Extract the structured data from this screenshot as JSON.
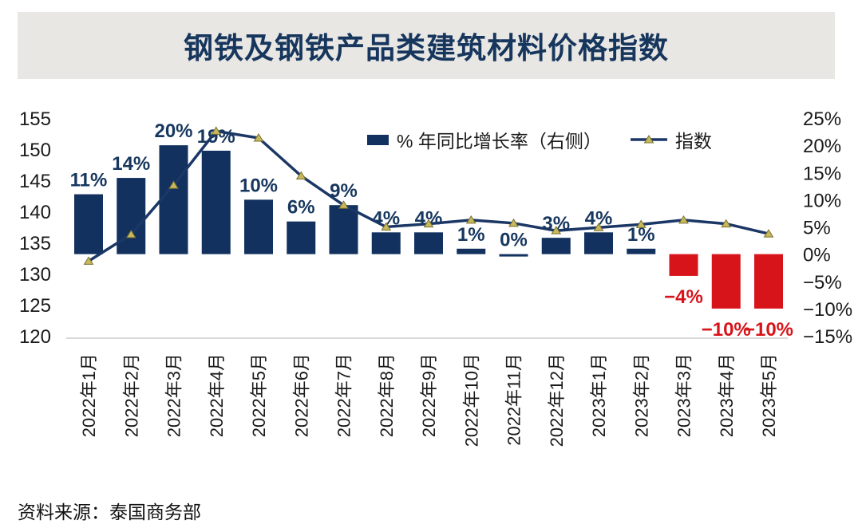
{
  "main": {
    "title": "钢铁及钢铁产品类建筑材料价格指数"
  },
  "legend": {
    "bars_label": "% 年同比增长率（右侧）",
    "line_label": "指数"
  },
  "footer": {
    "source": "资料来源：泰国商务部"
  },
  "colors": {
    "banner_bg": "#E8E7E4",
    "title_color": "#17365D",
    "bar_positive": "#12315F",
    "bar_negative": "#D7141A",
    "line": "#1B3766",
    "marker_fill": "#C8B85C",
    "marker_stroke": "#77702E",
    "label_positive": "#17375E",
    "label_negative": "#D7141A",
    "axis_text": "#1A1A1A",
    "axis_line": "#D9D9D9"
  },
  "chart_data": {
    "type": "combo_bar_line",
    "title": "钢铁及钢铁产品类建筑材料价格指数",
    "source": "资料来源：泰国商务部",
    "grid": "off",
    "legend_position": "top-inside",
    "categories": [
      "2022年1月",
      "2022年2月",
      "2022年3月",
      "2022年4月",
      "2022年5月",
      "2022年6月",
      "2022年7月",
      "2022年8月",
      "2022年9月",
      "2022年10月",
      "2022年11月",
      "2022年12月",
      "2023年1月",
      "2023年2月",
      "2023年3月",
      "2023年4月",
      "2023年5月"
    ],
    "series": [
      {
        "name": "% 年同比增长率（右侧）",
        "type": "bar",
        "axis": "right",
        "values": [
          11,
          14,
          20,
          19,
          10,
          6,
          9,
          4,
          4,
          1,
          0,
          3,
          4,
          1,
          -4,
          -10,
          -10
        ],
        "labels": [
          "11%",
          "14%",
          "20%",
          "19%",
          "10%",
          "6%",
          "9%",
          "4%",
          "4%",
          "1%",
          "0%",
          "3%",
          "4%",
          "1%",
          "−4%",
          "−10%",
          "−10%"
        ]
      },
      {
        "name": "指数",
        "type": "line",
        "axis": "left",
        "values": [
          132.0,
          136.3,
          144.2,
          152.9,
          151.8,
          145.7,
          141.0,
          137.5,
          138.0,
          138.6,
          138.1,
          136.9,
          137.4,
          137.9,
          138.6,
          138.0,
          136.4
        ]
      }
    ],
    "left_axis": {
      "min": 120,
      "max": 155,
      "tick_values": [
        155,
        150,
        145,
        140,
        135,
        130,
        125,
        120
      ],
      "tick_labels": [
        "155",
        "150",
        "145",
        "140",
        "135",
        "130",
        "125",
        "120"
      ]
    },
    "right_axis": {
      "min": -15,
      "max": 25,
      "tick_values": [
        25,
        20,
        15,
        10,
        5,
        0,
        -5,
        -10,
        -15
      ],
      "tick_labels": [
        "25%",
        "20%",
        "15%",
        "10%",
        "5%",
        "0%",
        "−5%",
        "−10%",
        "−15%"
      ]
    }
  }
}
